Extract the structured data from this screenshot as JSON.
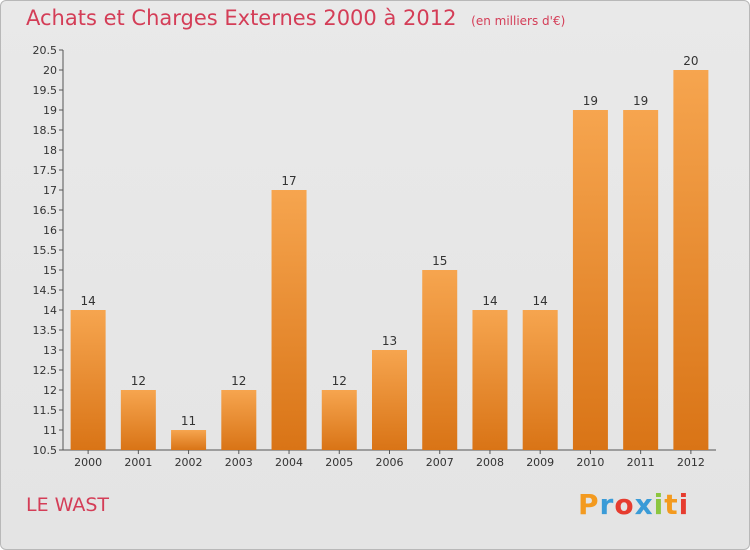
{
  "header": {
    "title": "Achats et Charges Externes 2000 à 2012",
    "subtitle": "(en milliers d'€)"
  },
  "footer": {
    "commune": "LE WAST",
    "brand": "Proxiti",
    "brand_colors": [
      "#f39a1f",
      "#3a9bd7",
      "#e63c2f",
      "#3a9bd7",
      "#8cc63f",
      "#f39a1f",
      "#e63c2f"
    ]
  },
  "chart_data": {
    "type": "bar",
    "categories": [
      "2000",
      "2001",
      "2002",
      "2003",
      "2004",
      "2005",
      "2006",
      "2007",
      "2008",
      "2009",
      "2010",
      "2011",
      "2012"
    ],
    "values": [
      14,
      12,
      11,
      12,
      17,
      12,
      13,
      15,
      14,
      14,
      19,
      19,
      20
    ],
    "data_labels": [
      "14",
      "12",
      "11",
      "12",
      "17",
      "12",
      "13",
      "15",
      "14",
      "14",
      "19",
      "19",
      "20"
    ],
    "title": "Achats et Charges Externes 2000 à 2012",
    "ylim": [
      10.5,
      20.5
    ],
    "yticks": [
      "10.5",
      "11",
      "11.5",
      "12",
      "12.5",
      "13",
      "13.5",
      "14",
      "14.5",
      "15",
      "15.5",
      "16",
      "16.5",
      "17",
      "17.5",
      "18",
      "18.5",
      "19",
      "19.5",
      "20",
      "20.5"
    ],
    "grid": false,
    "bar_color_top": "#f6a54f",
    "bar_color_bottom": "#d97416"
  }
}
